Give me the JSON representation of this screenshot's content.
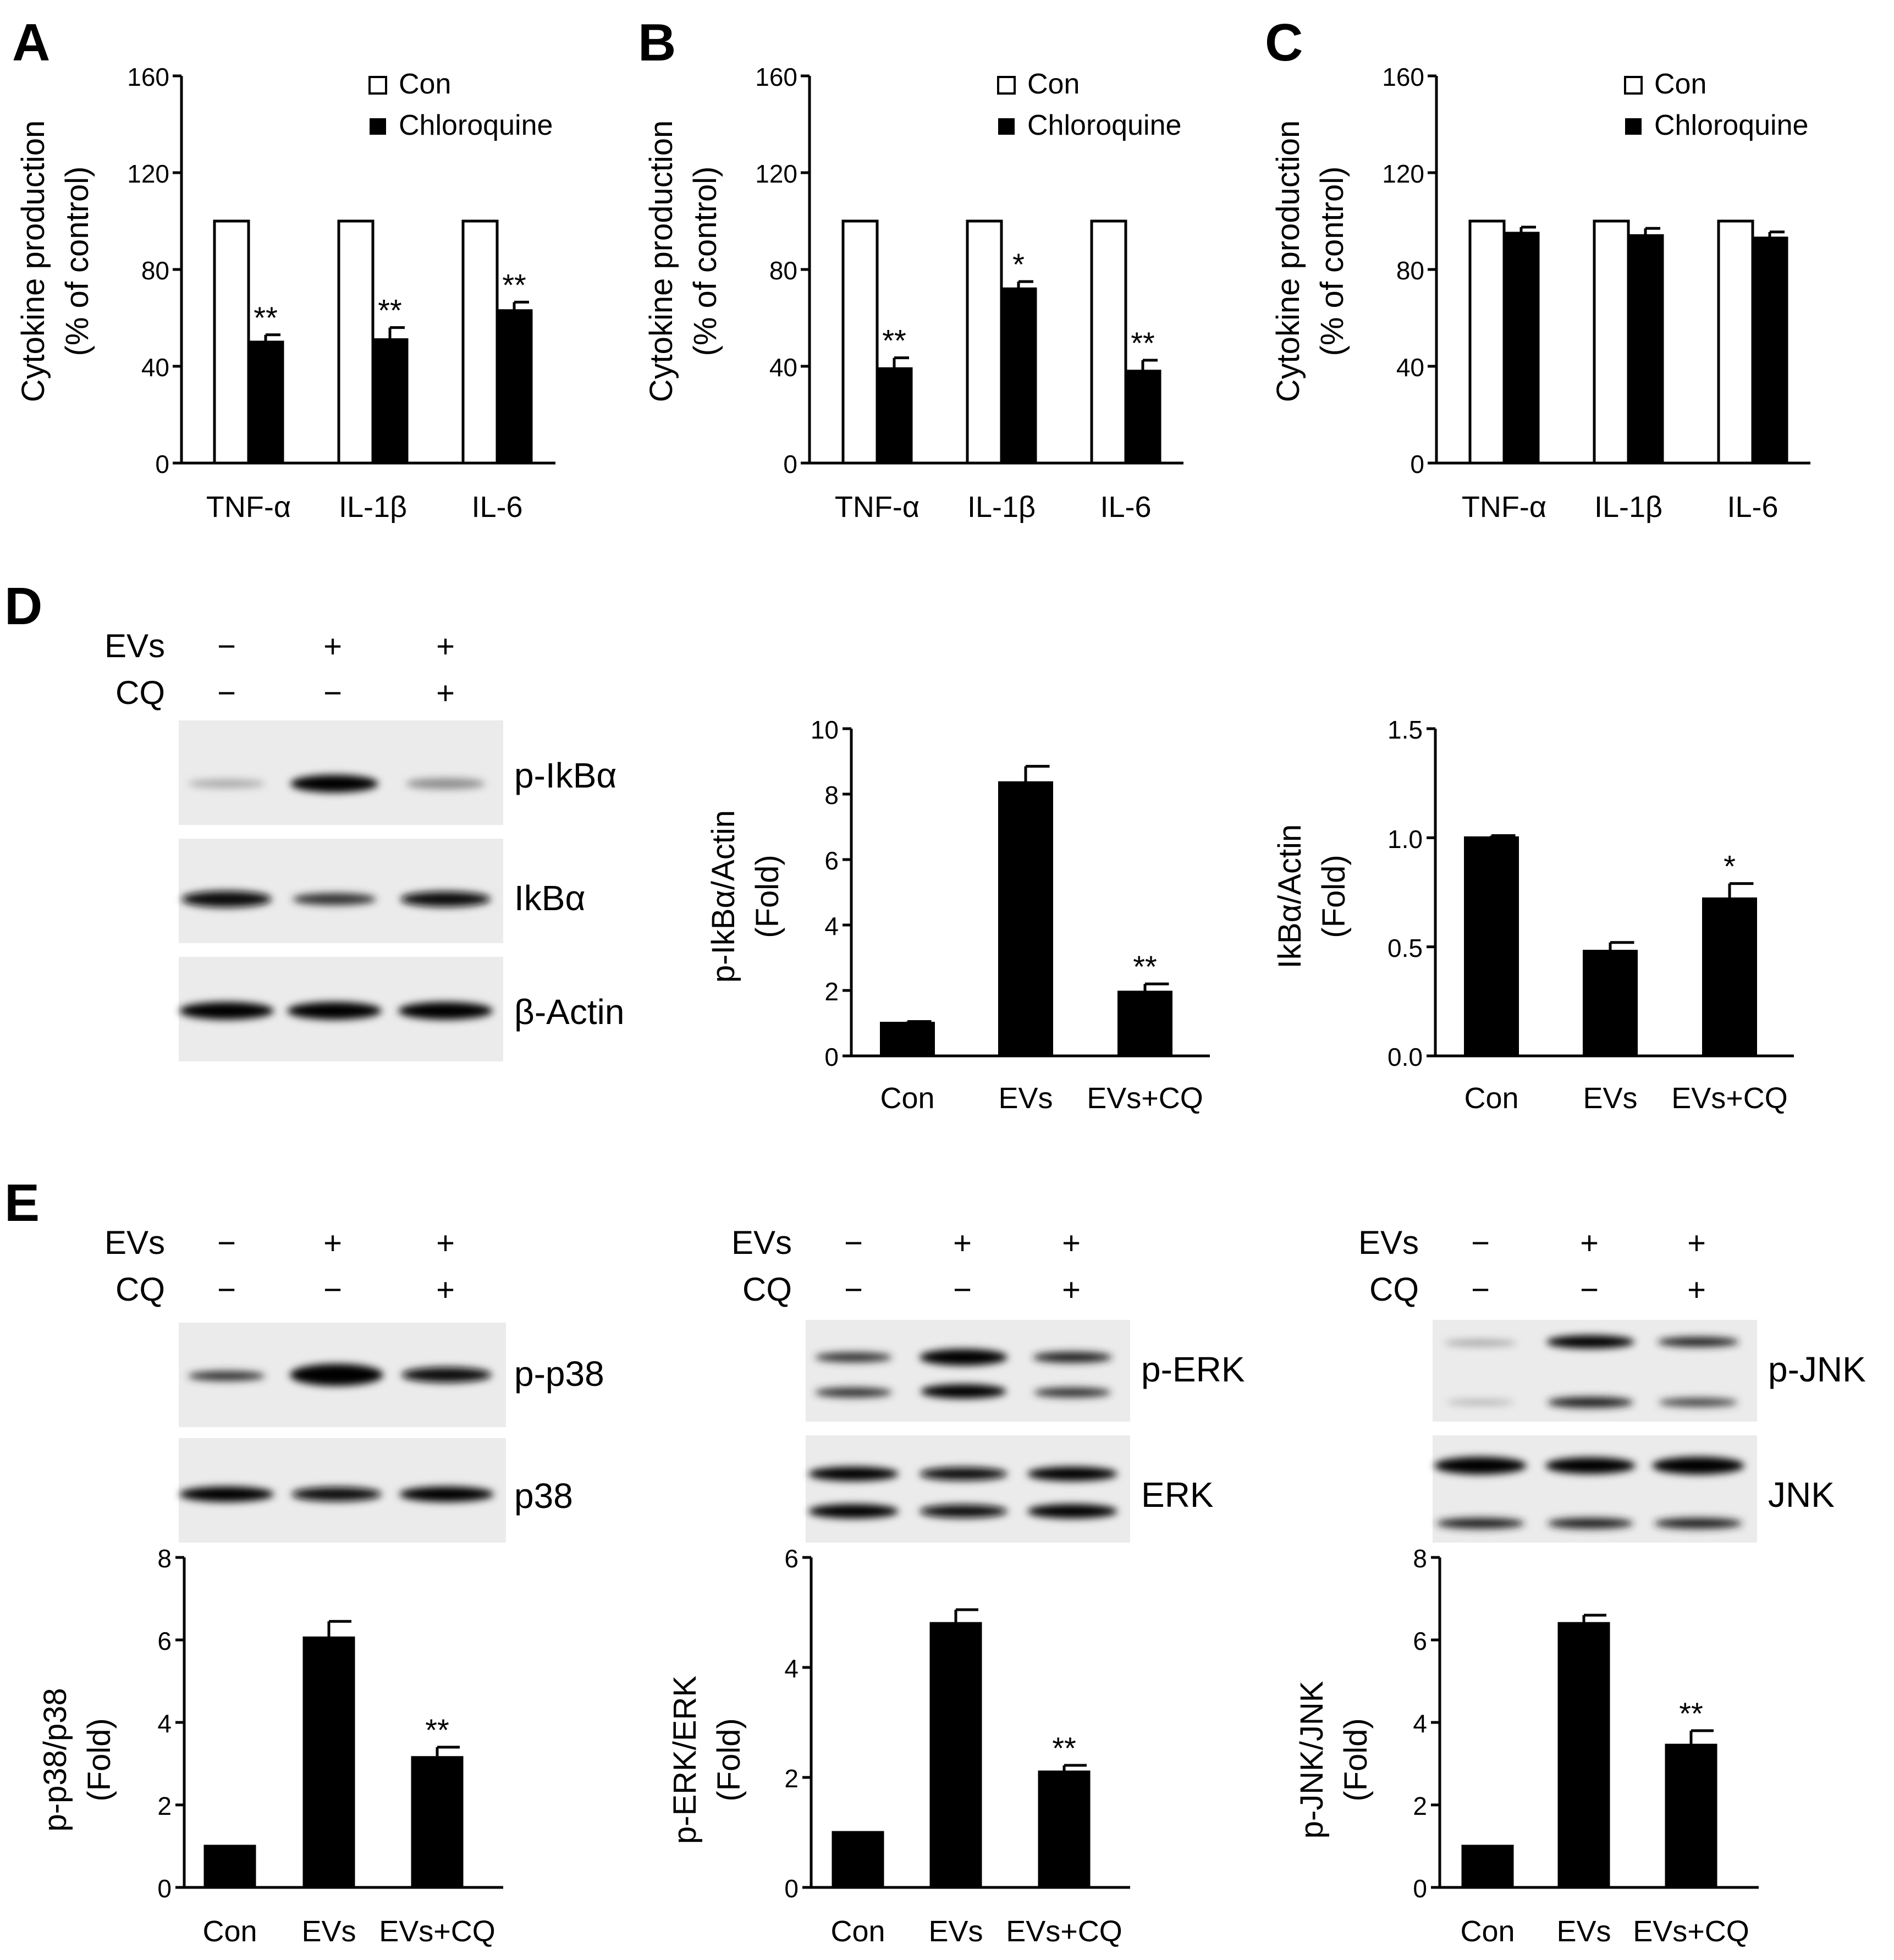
{
  "panels": {
    "A": "A",
    "B": "B",
    "C": "C",
    "D": "D",
    "E": "E"
  },
  "legend": {
    "con": "Con",
    "chloroquine": "Chloroquine"
  },
  "blot_D": {
    "evs_label": "EVs",
    "cq_label": "CQ",
    "evs_signs": [
      "−",
      "+",
      "+"
    ],
    "cq_signs": [
      "−",
      "−",
      "+"
    ],
    "bands": [
      "p-IkBα",
      "IkBα",
      "β-Actin"
    ]
  },
  "blot_E_p38": {
    "evs_label": "EVs",
    "cq_label": "CQ",
    "evs_signs": [
      "−",
      "+",
      "+"
    ],
    "cq_signs": [
      "−",
      "−",
      "+"
    ],
    "bands": [
      "p-p38",
      "p38"
    ]
  },
  "blot_E_erk": {
    "evs_label": "EVs",
    "cq_label": "CQ",
    "evs_signs": [
      "−",
      "+",
      "+"
    ],
    "cq_signs": [
      "−",
      "−",
      "+"
    ],
    "bands": [
      "p-ERK",
      "ERK"
    ]
  },
  "blot_E_jnk": {
    "evs_label": "EVs",
    "cq_label": "CQ",
    "evs_signs": [
      "−",
      "+",
      "+"
    ],
    "cq_signs": [
      "−",
      "−",
      "+"
    ],
    "bands": [
      "p-JNK",
      "JNK"
    ]
  },
  "chart_data": [
    {
      "id": "A",
      "type": "bar",
      "categories": [
        "TNF-α",
        "IL-1β",
        "IL-6"
      ],
      "series": [
        {
          "name": "Con",
          "values": [
            100,
            100,
            100
          ],
          "errors": [
            0,
            0,
            0
          ],
          "color": "#ffffff"
        },
        {
          "name": "Chloroquine",
          "values": [
            50,
            51,
            63
          ],
          "errors": [
            3,
            5,
            3.5
          ],
          "color": "#000000"
        }
      ],
      "annotations": [
        [
          "",
          "**"
        ],
        [
          "",
          "**"
        ],
        [
          "",
          "**"
        ]
      ],
      "ylabel": [
        "Cytokine production",
        "(% of control)"
      ],
      "ylim": [
        0,
        160
      ],
      "yticks": [
        "0",
        "40",
        "80",
        "120",
        "160"
      ],
      "tick_values": [
        0,
        40,
        80,
        120,
        160
      ],
      "legend": "top-right"
    },
    {
      "id": "B",
      "type": "bar",
      "categories": [
        "TNF-α",
        "IL-1β",
        "IL-6"
      ],
      "series": [
        {
          "name": "Con",
          "values": [
            100,
            100,
            100
          ],
          "errors": [
            0,
            0,
            0
          ],
          "color": "#ffffff"
        },
        {
          "name": "Chloroquine",
          "values": [
            39,
            72,
            38
          ],
          "errors": [
            4.5,
            3,
            4.5
          ],
          "color": "#000000"
        }
      ],
      "annotations": [
        [
          "",
          "**"
        ],
        [
          "",
          "*"
        ],
        [
          "",
          "**"
        ]
      ],
      "ylabel": [
        "Cytokine production",
        "(% of control)"
      ],
      "ylim": [
        0,
        160
      ],
      "yticks": [
        "0",
        "40",
        "80",
        "120",
        "160"
      ],
      "tick_values": [
        0,
        40,
        80,
        120,
        160
      ],
      "legend": "top-right"
    },
    {
      "id": "C",
      "type": "bar",
      "categories": [
        "TNF-α",
        "IL-1β",
        "IL-6"
      ],
      "series": [
        {
          "name": "Con",
          "values": [
            100,
            100,
            100
          ],
          "errors": [
            0,
            0,
            0
          ],
          "color": "#ffffff"
        },
        {
          "name": "Chloroquine",
          "values": [
            95,
            94,
            93
          ],
          "errors": [
            2.5,
            3,
            2.5
          ],
          "color": "#000000"
        }
      ],
      "annotations": [
        [
          "",
          ""
        ],
        [
          "",
          ""
        ],
        [
          "",
          ""
        ]
      ],
      "ylabel": [
        "Cytokine production",
        "(% of control)"
      ],
      "ylim": [
        0,
        160
      ],
      "yticks": [
        "0",
        "40",
        "80",
        "120",
        "160"
      ],
      "tick_values": [
        0,
        40,
        80,
        120,
        160
      ],
      "legend": "top-right"
    },
    {
      "id": "D1",
      "type": "bar",
      "categories": [
        "Con",
        "EVs",
        "EVs+CQ"
      ],
      "values": [
        1.0,
        8.35,
        1.95
      ],
      "errors": [
        0.05,
        0.5,
        0.25
      ],
      "annotations": [
        "",
        "",
        "**"
      ],
      "ylabel": [
        "p-IkBα/Actin",
        "(Fold)"
      ],
      "ylim": [
        0,
        10
      ],
      "yticks": [
        "0",
        "2",
        "4",
        "6",
        "8",
        "10"
      ],
      "tick_values": [
        0,
        2,
        4,
        6,
        8,
        10
      ]
    },
    {
      "id": "D2",
      "type": "bar",
      "categories": [
        "Con",
        "EVs",
        "EVs+CQ"
      ],
      "values": [
        1.0,
        0.48,
        0.72
      ],
      "errors": [
        0.01,
        0.04,
        0.07
      ],
      "annotations": [
        "",
        "",
        "*"
      ],
      "ylabel": [
        "IkBα/Actin",
        "(Fold)"
      ],
      "ylim": [
        0,
        1.5
      ],
      "yticks": [
        "0.0",
        "0.5",
        "1.0",
        "1.5"
      ],
      "tick_values": [
        0,
        0.5,
        1.0,
        1.5
      ]
    },
    {
      "id": "E1",
      "type": "bar",
      "categories": [
        "Con",
        "EVs",
        "EVs+CQ"
      ],
      "values": [
        1.0,
        6.05,
        3.15
      ],
      "errors": [
        0,
        0.4,
        0.25
      ],
      "annotations": [
        "",
        "",
        "**"
      ],
      "ylabel": [
        "p-p38/p38",
        "(Fold)"
      ],
      "ylim": [
        0,
        8
      ],
      "yticks": [
        "0",
        "2",
        "4",
        "6",
        "8"
      ],
      "tick_values": [
        0,
        2,
        4,
        6,
        8
      ]
    },
    {
      "id": "E2",
      "type": "bar",
      "categories": [
        "Con",
        "EVs",
        "EVs+CQ"
      ],
      "values": [
        1.0,
        4.8,
        2.1
      ],
      "errors": [
        0,
        0.25,
        0.12
      ],
      "annotations": [
        "",
        "",
        "**"
      ],
      "ylabel": [
        "p-ERK/ERK",
        "(Fold)"
      ],
      "ylim": [
        0,
        6
      ],
      "yticks": [
        "0",
        "2",
        "4",
        "6"
      ],
      "tick_values": [
        0,
        2,
        4,
        6
      ]
    },
    {
      "id": "E3",
      "type": "bar",
      "categories": [
        "Con",
        "EVs",
        "EVs+CQ"
      ],
      "values": [
        1.0,
        6.4,
        3.45
      ],
      "errors": [
        0,
        0.2,
        0.35
      ],
      "annotations": [
        "",
        "",
        "**"
      ],
      "ylabel": [
        "p-JNK/JNK",
        "(Fold)"
      ],
      "ylim": [
        0,
        8
      ],
      "yticks": [
        "0",
        "2",
        "4",
        "6",
        "8"
      ],
      "tick_values": [
        0,
        2,
        4,
        6,
        8
      ]
    }
  ]
}
